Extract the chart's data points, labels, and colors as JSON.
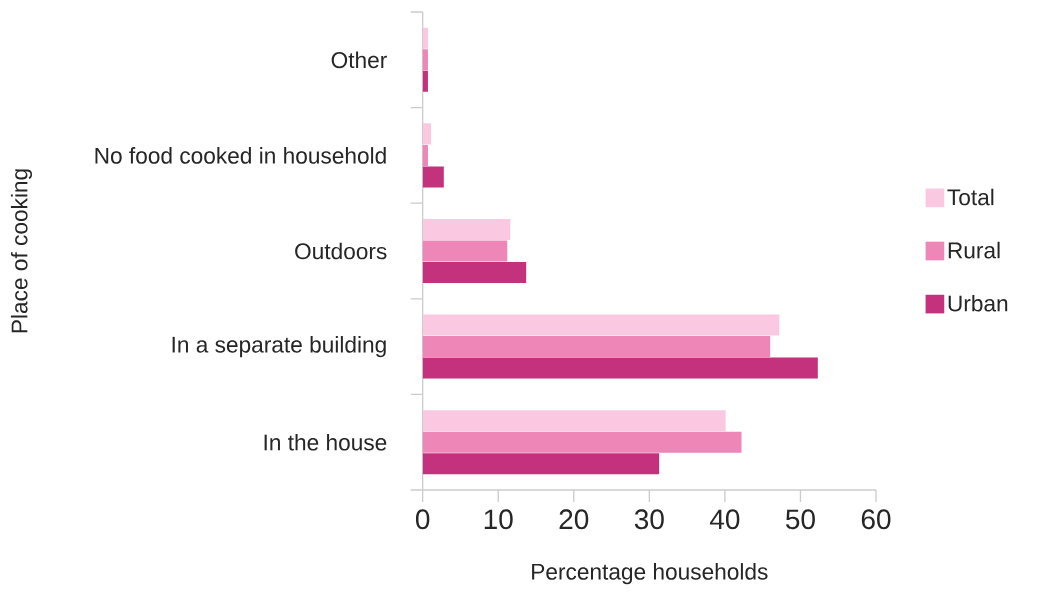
{
  "chart_data": {
    "type": "bar",
    "orientation": "horizontal",
    "xlabel": "Percentage households",
    "ylabel": "Place of cooking",
    "categories": [
      "Other",
      "No food cooked in household",
      "Outdoors",
      "In a separate building",
      "In the house"
    ],
    "series": [
      {
        "name": "Total",
        "color": "#fac8e1",
        "values": [
          0.7,
          1.1,
          11.6,
          47.2,
          40.1
        ]
      },
      {
        "name": "Rural",
        "color": "#ee87b8",
        "values": [
          0.7,
          0.7,
          11.2,
          46.0,
          42.2
        ]
      },
      {
        "name": "Urban",
        "color": "#c4317c",
        "values": [
          0.7,
          2.8,
          13.7,
          52.3,
          31.3
        ]
      }
    ],
    "xlim": [
      0,
      60
    ],
    "xticks": [
      0,
      10,
      20,
      30,
      40,
      50,
      60
    ],
    "legend": "right",
    "grid": false
  }
}
